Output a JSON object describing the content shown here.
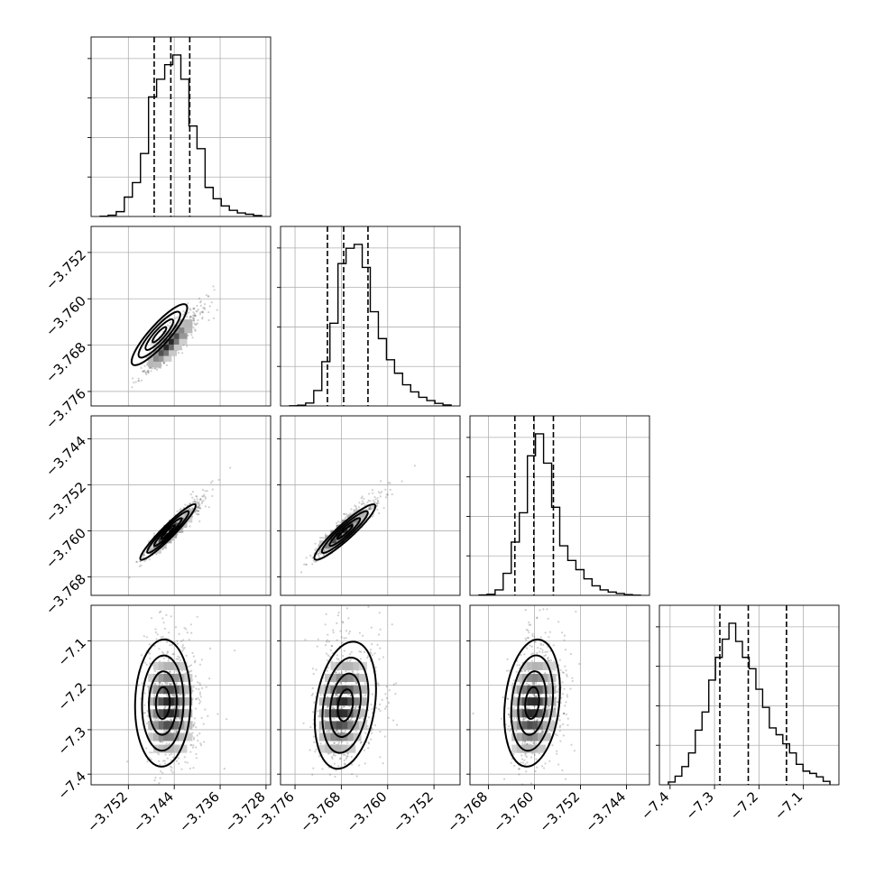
{
  "chart_data": {
    "type": "corner",
    "grid": true,
    "parameters": [
      {
        "range": [
          -3.7585,
          -3.7272
        ],
        "ticks": [
          -3.752,
          -3.744,
          -3.736,
          -3.728
        ],
        "tick_labels": [
          "−3.752",
          "−3.744",
          "−3.736",
          "−3.728"
        ],
        "quantiles": [
          -3.7475,
          -3.7446,
          -3.7413
        ],
        "peak": -3.7447,
        "spread": 0.0022,
        "hist_peak": 0.94
      },
      {
        "range": [
          -3.7785,
          -3.7475
        ],
        "ticks": [
          -3.776,
          -3.768,
          -3.76,
          -3.752
        ],
        "tick_labels": [
          "−3.776",
          "−3.768",
          "−3.760",
          "−3.752"
        ],
        "quantiles": [
          -3.7704,
          -3.7676,
          -3.7634
        ],
        "peak": -3.7677,
        "spread": 0.0024,
        "hist_peak": 0.93
      },
      {
        "range": [
          -3.7712,
          -3.74
        ],
        "ticks": [
          -3.768,
          -3.76,
          -3.752,
          -3.744
        ],
        "tick_labels": [
          "−3.768",
          "−3.760",
          "−3.752",
          "−3.744"
        ],
        "quantiles": [
          -3.7634,
          -3.7601,
          -3.7567
        ],
        "peak": -3.7601,
        "spread": 0.0022,
        "hist_peak": 0.92
      },
      {
        "range": [
          -7.424,
          -7.02
        ],
        "ticks": [
          -7.4,
          -7.3,
          -7.2,
          -7.1
        ],
        "tick_labels": [
          "−7.4",
          "−7.3",
          "−7.2",
          "−7.1"
        ],
        "quantiles": [
          -7.288,
          -7.224,
          -7.138
        ],
        "peak": -7.25,
        "spread": 0.065,
        "hist_peak": 0.92
      }
    ],
    "histograms": [
      {
        "param": 0,
        "counts": [
          0.002,
          0.008,
          0.03,
          0.12,
          0.21,
          0.39,
          0.74,
          0.85,
          0.94,
          1.0,
          0.85,
          0.56,
          0.42,
          0.18,
          0.11,
          0.065,
          0.038,
          0.022,
          0.014,
          0.006
        ]
      },
      {
        "param": 1,
        "counts": [
          0.001,
          0.004,
          0.015,
          0.08,
          0.23,
          0.43,
          0.74,
          0.82,
          0.84,
          0.72,
          0.49,
          0.35,
          0.24,
          0.17,
          0.11,
          0.073,
          0.045,
          0.028,
          0.013,
          0.005
        ]
      },
      {
        "param": 2,
        "counts": [
          0.002,
          0.006,
          0.03,
          0.12,
          0.29,
          0.45,
          0.76,
          0.88,
          0.72,
          0.48,
          0.27,
          0.19,
          0.14,
          0.09,
          0.052,
          0.03,
          0.018,
          0.01,
          0.004,
          0.001
        ]
      },
      {
        "param": 3,
        "counts": [
          0.012,
          0.038,
          0.08,
          0.14,
          0.24,
          0.32,
          0.46,
          0.56,
          0.64,
          0.71,
          0.63,
          0.56,
          0.51,
          0.42,
          0.34,
          0.25,
          0.22,
          0.18,
          0.14,
          0.09,
          0.06,
          0.05,
          0.035,
          0.015
        ]
      }
    ],
    "pairs": [
      {
        "x": 0,
        "y": 1,
        "correlation": 0.88,
        "core": [
          -3.7466,
          -3.7662
        ]
      },
      {
        "x": 0,
        "y": 2,
        "correlation": 0.95,
        "core": [
          -3.7451,
          -3.7602
        ]
      },
      {
        "x": 1,
        "y": 2,
        "correlation": 0.93,
        "core": [
          -3.7674,
          -3.7602
        ]
      },
      {
        "x": 0,
        "y": 3,
        "correlation": 0.05,
        "core": [
          -3.746,
          -7.24
        ]
      },
      {
        "x": 1,
        "y": 3,
        "correlation": 0.25,
        "core": [
          -3.7673,
          -7.245
        ]
      },
      {
        "x": 2,
        "y": 3,
        "correlation": 0.2,
        "core": [
          -3.7604,
          -7.24
        ]
      }
    ]
  }
}
